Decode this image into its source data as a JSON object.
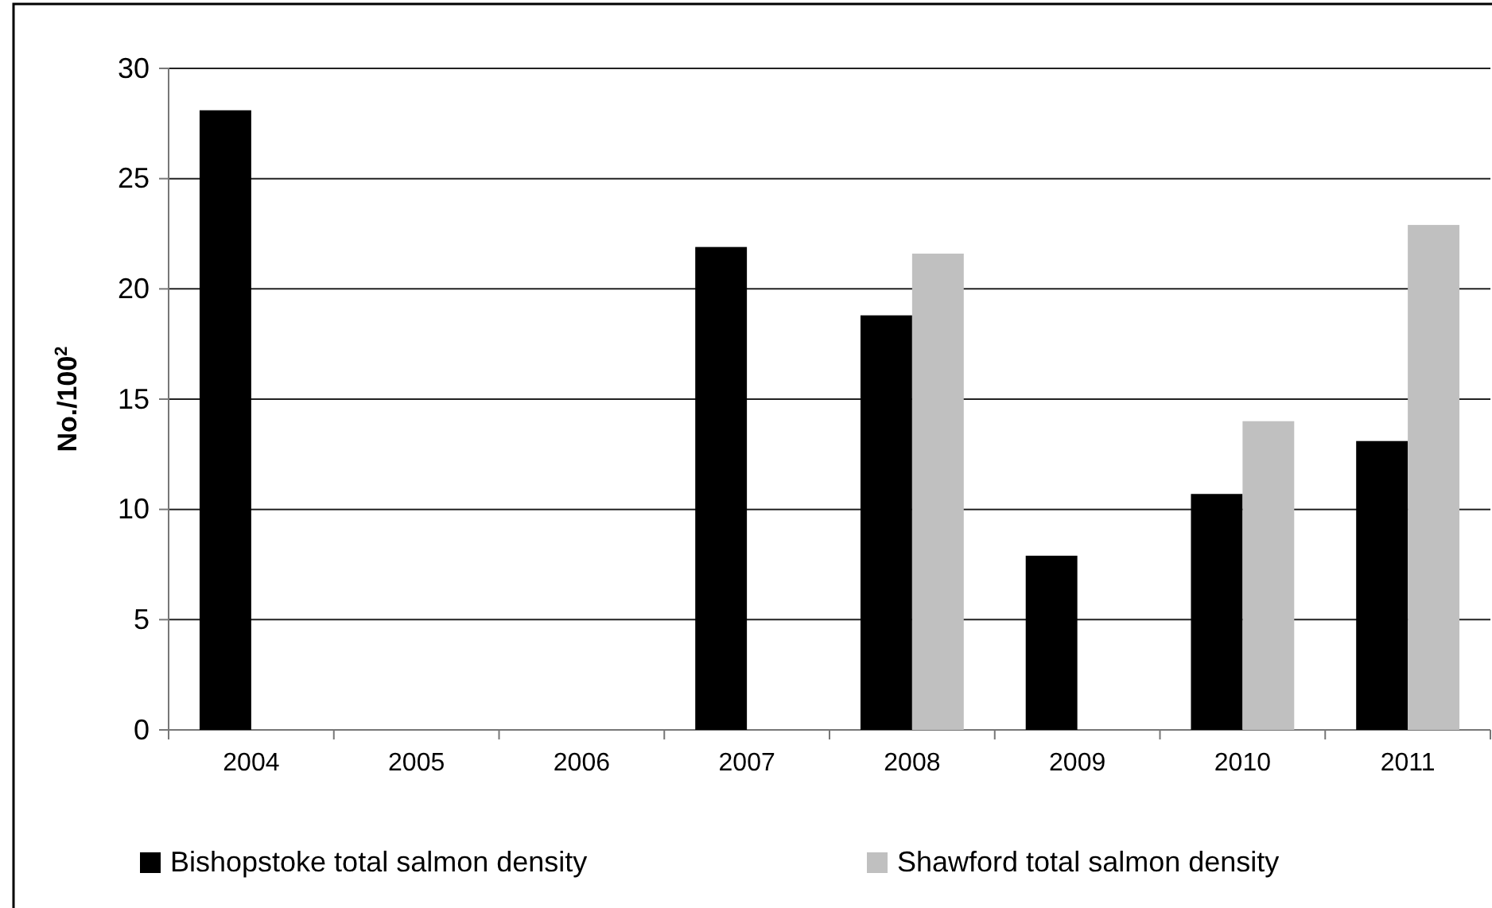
{
  "chart_data": {
    "type": "bar",
    "ylabel": "No./100$^{2}$",
    "categories": [
      "2004",
      "2005",
      "2006",
      "2007",
      "2008",
      "2009",
      "2010",
      "2011"
    ],
    "series": [
      {
        "name": "Bishopstoke total salmon density",
        "color": "#000000",
        "values": [
          28.1,
          null,
          null,
          21.9,
          18.8,
          7.9,
          10.7,
          13.1
        ]
      },
      {
        "name": "Shawford total salmon density",
        "color": "#c0c0c0",
        "values": [
          null,
          null,
          null,
          null,
          21.6,
          null,
          14.0,
          22.9
        ]
      }
    ],
    "ylim": [
      0,
      30
    ],
    "yticks": [
      0,
      5,
      10,
      15,
      20,
      25,
      30
    ],
    "grid": "y",
    "legend": "bottom"
  }
}
